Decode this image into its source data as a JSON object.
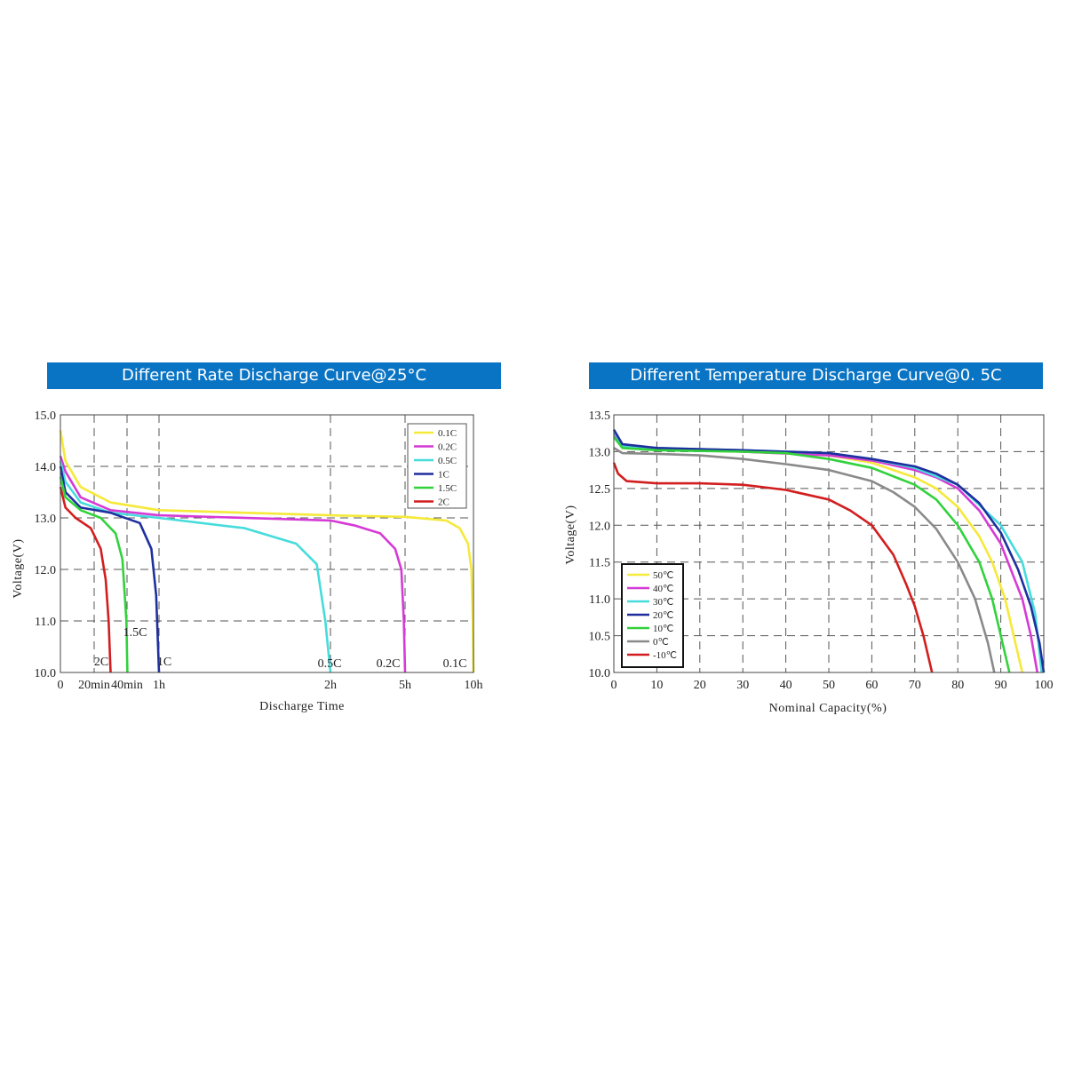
{
  "charts": [
    {
      "title": "Different Rate Discharge Curve@25°C",
      "xlabel": "Discharge Time",
      "ylabel": "Voltage(V)",
      "yticks": [
        "15.0",
        "14.0",
        "13.0",
        "12.0",
        "11.0",
        "10.0"
      ],
      "xticks": [
        "0",
        "20min",
        "40min",
        "1h",
        "2h",
        "5h",
        "10h"
      ],
      "annotations": [
        "2C",
        "1.5C",
        "1C",
        "0.5C",
        "0.2C",
        "0.1C"
      ],
      "legend": [
        "0.1C",
        "0.2C",
        "0.5C",
        "1C",
        "1.5C",
        "2C"
      ]
    },
    {
      "title": "Different Temperature Discharge Curve@0. 5C",
      "xlabel": "Nominal Capacity(%)",
      "ylabel": "Voltage(V)",
      "yticks": [
        "13.5",
        "13.0",
        "12.5",
        "12.0",
        "11.5",
        "11.0",
        "10.5",
        "10.0"
      ],
      "xticks": [
        "0",
        "10",
        "20",
        "30",
        "40",
        "50",
        "60",
        "70",
        "80",
        "90",
        "100"
      ],
      "legend": [
        "50℃",
        "40℃",
        "30℃",
        "20℃",
        "10℃",
        "0℃",
        "-10℃"
      ]
    }
  ],
  "chart_data": [
    {
      "type": "line",
      "title": "Different Rate Discharge Curve@25°C",
      "xlabel": "Discharge Time",
      "ylabel": "Voltage(V)",
      "ylim": [
        10.0,
        15.0
      ],
      "x_scale": "nonlinear (0, 20min, 40min, 1h, 2h, 5h, 10h)",
      "legend_position": "top-right",
      "grid": true,
      "series": [
        {
          "name": "0.1C",
          "color": "#f5e93a",
          "x_hours": [
            0,
            0.05,
            0.2,
            0.5,
            1,
            2,
            5,
            8,
            9,
            9.6,
            9.85,
            9.95,
            10
          ],
          "voltage": [
            14.7,
            14.1,
            13.6,
            13.3,
            13.15,
            13.05,
            13.02,
            12.95,
            12.8,
            12.5,
            12.0,
            11.0,
            10.0
          ]
        },
        {
          "name": "0.2C",
          "color": "#d63ad6",
          "x_hours": [
            0,
            0.05,
            0.2,
            0.5,
            1,
            2,
            3,
            4,
            4.6,
            4.85,
            4.95,
            5
          ],
          "voltage": [
            14.2,
            13.9,
            13.4,
            13.15,
            13.05,
            12.95,
            12.85,
            12.7,
            12.4,
            12.0,
            11.0,
            10.0
          ]
        },
        {
          "name": "0.5C",
          "color": "#46dcdc",
          "x_hours": [
            0,
            0.05,
            0.2,
            0.5,
            1,
            1.5,
            1.8,
            1.92,
            1.97,
            2.0
          ],
          "voltage": [
            14.1,
            13.7,
            13.3,
            13.1,
            13.0,
            12.8,
            12.5,
            12.1,
            11.0,
            10.0
          ]
        },
        {
          "name": "1C",
          "color": "#1f2f9e",
          "x_hours": [
            0,
            0.05,
            0.2,
            0.5,
            0.8,
            0.92,
            0.97,
            1.0
          ],
          "voltage": [
            14.0,
            13.5,
            13.2,
            13.1,
            12.9,
            12.4,
            11.5,
            10.0
          ]
        },
        {
          "name": "1.5C",
          "color": "#32d23c",
          "x_hours": [
            0,
            0.05,
            0.2,
            0.4,
            0.55,
            0.62,
            0.66,
            0.67
          ],
          "voltage": [
            13.8,
            13.4,
            13.15,
            13.0,
            12.7,
            12.2,
            11.0,
            10.0
          ]
        },
        {
          "name": "2C",
          "color": "#d21e1e",
          "x_hours": [
            0,
            0.05,
            0.15,
            0.3,
            0.4,
            0.45,
            0.48,
            0.5
          ],
          "voltage": [
            13.6,
            13.2,
            13.0,
            12.8,
            12.4,
            11.8,
            11.0,
            10.0
          ]
        }
      ]
    },
    {
      "type": "line",
      "title": "Different Temperature Discharge Curve@0. 5C",
      "xlabel": "Nominal Capacity(%)",
      "ylabel": "Voltage(V)",
      "xlim": [
        0,
        100
      ],
      "ylim": [
        10.0,
        13.5
      ],
      "legend_position": "bottom-left",
      "grid": true,
      "series": [
        {
          "name": "50℃",
          "color": "#f5e93a",
          "x": [
            0,
            2,
            10,
            30,
            50,
            60,
            70,
            75,
            80,
            85,
            88,
            91,
            93,
            95
          ],
          "y": [
            13.25,
            13.05,
            13.03,
            13.0,
            12.95,
            12.85,
            12.65,
            12.5,
            12.25,
            11.85,
            11.5,
            11.0,
            10.5,
            10.0
          ]
        },
        {
          "name": "40℃",
          "color": "#d63ad6",
          "x": [
            0,
            2,
            10,
            30,
            50,
            60,
            70,
            75,
            80,
            85,
            90,
            93,
            95,
            97,
            98.5
          ],
          "y": [
            13.25,
            13.08,
            13.05,
            13.0,
            12.95,
            12.88,
            12.75,
            12.65,
            12.5,
            12.2,
            11.75,
            11.3,
            11.0,
            10.5,
            10.0
          ]
        },
        {
          "name": "30℃",
          "color": "#46dcdc",
          "x": [
            0,
            2,
            10,
            30,
            50,
            60,
            70,
            80,
            90,
            95,
            98,
            99.5
          ],
          "y": [
            13.28,
            13.08,
            13.05,
            13.02,
            12.98,
            12.9,
            12.78,
            12.55,
            12.0,
            11.5,
            10.8,
            10.0
          ]
        },
        {
          "name": "20℃",
          "color": "#1f2f9e",
          "x": [
            0,
            2,
            10,
            30,
            50,
            60,
            70,
            75,
            80,
            85,
            90,
            94,
            97,
            99,
            100
          ],
          "y": [
            13.3,
            13.1,
            13.05,
            13.02,
            12.98,
            12.9,
            12.8,
            12.7,
            12.55,
            12.3,
            11.9,
            11.4,
            10.9,
            10.4,
            10.0
          ]
        },
        {
          "name": "10℃",
          "color": "#32d23c",
          "x": [
            0,
            2,
            10,
            30,
            40,
            50,
            60,
            70,
            75,
            80,
            85,
            88,
            90,
            92
          ],
          "y": [
            13.2,
            13.05,
            13.02,
            13.0,
            12.98,
            12.9,
            12.78,
            12.55,
            12.35,
            12.0,
            11.5,
            11.0,
            10.5,
            10.0
          ]
        },
        {
          "name": "0℃",
          "color": "#8a8a8a",
          "x": [
            0,
            2,
            10,
            20,
            30,
            40,
            50,
            60,
            65,
            70,
            75,
            80,
            84,
            87,
            88.5
          ],
          "y": [
            13.05,
            12.98,
            12.97,
            12.95,
            12.9,
            12.83,
            12.75,
            12.6,
            12.45,
            12.25,
            11.95,
            11.5,
            11.0,
            10.4,
            10.0
          ]
        },
        {
          "name": "-10℃",
          "color": "#d21e1e",
          "x": [
            0,
            1,
            3,
            10,
            20,
            30,
            40,
            50,
            55,
            60,
            65,
            68,
            70,
            72,
            74
          ],
          "y": [
            12.85,
            12.7,
            12.6,
            12.57,
            12.57,
            12.55,
            12.48,
            12.35,
            12.2,
            12.0,
            11.6,
            11.2,
            10.9,
            10.5,
            10.0
          ]
        }
      ]
    }
  ]
}
